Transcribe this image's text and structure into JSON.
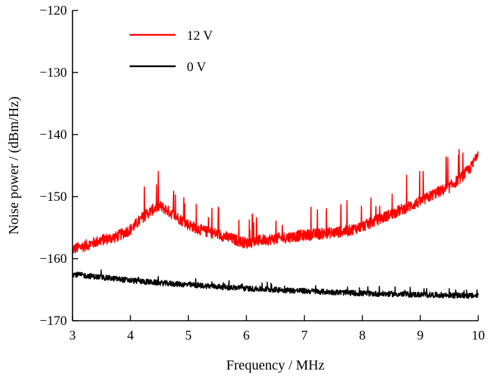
{
  "chart_data": {
    "type": "line",
    "title": "",
    "xlabel": "Frequency / MHz",
    "ylabel": "Noise power / (dBm/Hz)",
    "xlim": [
      3,
      10
    ],
    "ylim": [
      -170,
      -120
    ],
    "x_ticks": [
      3,
      4,
      5,
      6,
      7,
      8,
      9,
      10
    ],
    "y_ticks": [
      -120,
      -130,
      -140,
      -150,
      -160,
      -170
    ],
    "x_tick_labels": [
      "3",
      "4",
      "5",
      "6",
      "7",
      "8",
      "9",
      "10"
    ],
    "y_tick_labels": [
      "−120",
      "−130",
      "−140",
      "−150",
      "−160",
      "−170"
    ],
    "legend_position": "top-left",
    "grid": false,
    "series": [
      {
        "name": "12 V",
        "color": "#ff0000",
        "x": [
          3.0,
          3.25,
          3.5,
          3.75,
          4.0,
          4.25,
          4.4,
          4.5,
          4.6,
          4.75,
          5.0,
          5.25,
          5.5,
          5.75,
          6.0,
          6.25,
          6.5,
          6.75,
          7.0,
          7.25,
          7.5,
          7.75,
          8.0,
          8.25,
          8.5,
          8.75,
          9.0,
          9.25,
          9.5,
          9.75,
          9.9,
          10.0
        ],
        "values": [
          -158.5,
          -157.8,
          -157.0,
          -156.5,
          -155.3,
          -153.0,
          -152.0,
          -151.5,
          -152.0,
          -153.0,
          -154.5,
          -155.5,
          -156.0,
          -156.8,
          -157.5,
          -157.0,
          -156.8,
          -156.5,
          -156.2,
          -156.0,
          -155.8,
          -155.5,
          -154.8,
          -153.8,
          -152.8,
          -151.8,
          -150.8,
          -149.5,
          -148.5,
          -146.5,
          -145.0,
          -142.5
        ]
      },
      {
        "name": "0 V",
        "color": "#000000",
        "x": [
          3.0,
          3.5,
          4.0,
          4.5,
          5.0,
          5.5,
          6.0,
          6.5,
          7.0,
          7.5,
          8.0,
          8.5,
          9.0,
          9.5,
          10.0
        ],
        "values": [
          -162.5,
          -163.0,
          -163.5,
          -163.9,
          -164.2,
          -164.5,
          -164.8,
          -165.0,
          -165.2,
          -165.4,
          -165.6,
          -165.7,
          -165.8,
          -165.9,
          -166.0
        ]
      }
    ]
  }
}
